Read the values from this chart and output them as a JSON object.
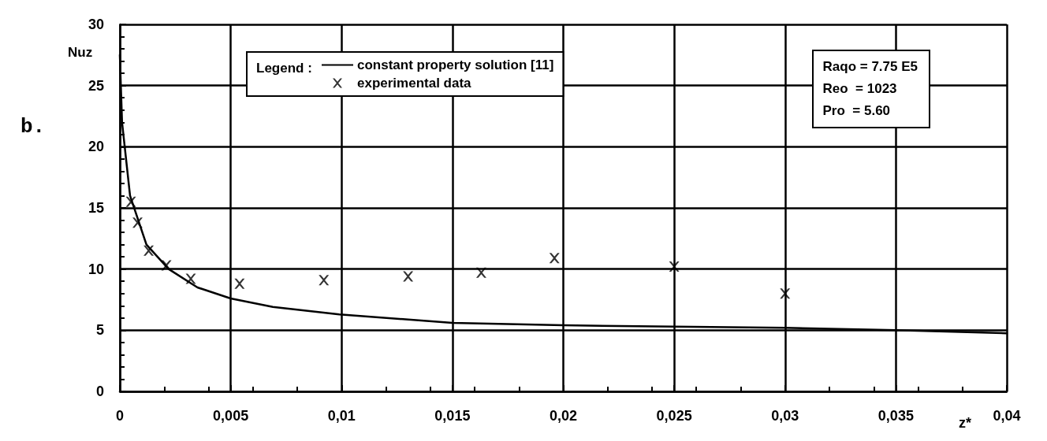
{
  "chart_data": {
    "type": "line",
    "xlabel": "z*",
    "ylabel": "Nuz",
    "legend_title": "Legend :",
    "annotations": [
      "b.",
      "Raqo = 7.75 E5",
      "Reo  = 1023",
      "Pro  = 5.60"
    ],
    "series": [
      {
        "name": "constant property solution [11]",
        "color": "#000000",
        "marker": "none",
        "x": [
          0,
          0.0001,
          0.00046,
          0.0012,
          0.0022,
          0.0035,
          0.005,
          0.0069,
          0.0099,
          0.015,
          0.02,
          0.03,
          0.035,
          0.04
        ],
        "values": [
          27.5,
          22,
          16,
          12,
          10,
          8.5,
          7.6,
          6.9,
          6.3,
          5.6,
          5.4,
          5.2,
          5.0,
          4.75
        ]
      },
      {
        "name": "experimental data",
        "type": "scatter",
        "color": "#000000",
        "marker": "cross",
        "x": [
          0.0005,
          0.0008,
          0.0013,
          0.0021,
          0.0032,
          0.0054,
          0.0092,
          0.013,
          0.0163,
          0.0196,
          0.025,
          0.03
        ],
        "values": [
          15.5,
          13.8,
          11.5,
          10.3,
          9.2,
          8.8,
          9.1,
          9.4,
          9.7,
          10.9,
          10.2,
          8.0
        ]
      }
    ],
    "xlim": [
      0,
      0.04
    ],
    "ylim": [
      0,
      30
    ],
    "xticks": [
      0,
      {
        "value": 0.005,
        "label": "0,005"
      },
      {
        "value": 0.01,
        "label": "0,01"
      },
      {
        "value": 0.015,
        "label": "0,015"
      },
      {
        "value": 0.02,
        "label": "0,02"
      },
      {
        "value": 0.025,
        "label": "0,025"
      },
      {
        "value": 0.03,
        "label": "0,03"
      },
      {
        "value": 0.035,
        "label": "0,035"
      },
      {
        "value": 0.04,
        "label": "0,04"
      }
    ],
    "yticks": [
      0,
      5,
      10,
      15,
      20,
      25,
      30
    ],
    "grid": true,
    "legend": "top"
  }
}
